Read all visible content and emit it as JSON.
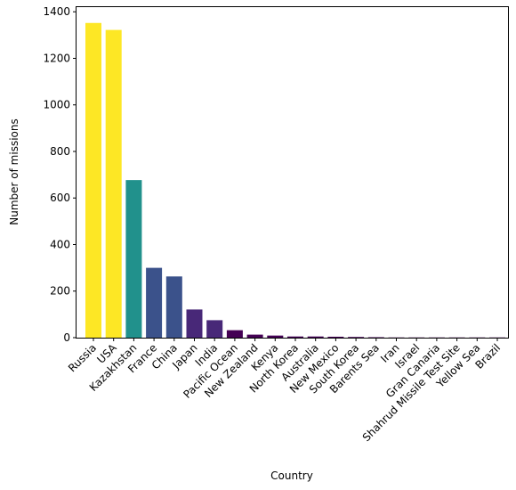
{
  "chart_data": {
    "type": "bar",
    "title": "",
    "xlabel": "Country",
    "ylabel": "Number of missions",
    "ylim": [
      0,
      1420
    ],
    "yticks": [
      0,
      200,
      400,
      600,
      800,
      1000,
      1200,
      1400
    ],
    "grid": false,
    "categories": [
      "Russia",
      "USA",
      "Kazakhstan",
      "France",
      "China",
      "Japan",
      "India",
      "Pacific Ocean",
      "New Zealand",
      "Kenya",
      "North Korea",
      "Australia",
      "New Mexico",
      "South Korea",
      "Barents Sea",
      "Iran",
      "Israel",
      "Gran Canaria",
      "Shahrud Missile Test Site",
      "Yellow Sea",
      "Brazil"
    ],
    "values": [
      1352,
      1322,
      677,
      300,
      263,
      121,
      75,
      32,
      13,
      9,
      5,
      5,
      4,
      3,
      2,
      1,
      1,
      1,
      1,
      1,
      1
    ],
    "colors": [
      "#fde725",
      "#fde725",
      "#21918c",
      "#3b528b",
      "#3b528b",
      "#482878",
      "#482878",
      "#440154",
      "#440154",
      "#440154",
      "#440154",
      "#440154",
      "#440154",
      "#440154",
      "#440154",
      "#440154",
      "#440154",
      "#440154",
      "#440154",
      "#440154",
      "#440154"
    ]
  }
}
